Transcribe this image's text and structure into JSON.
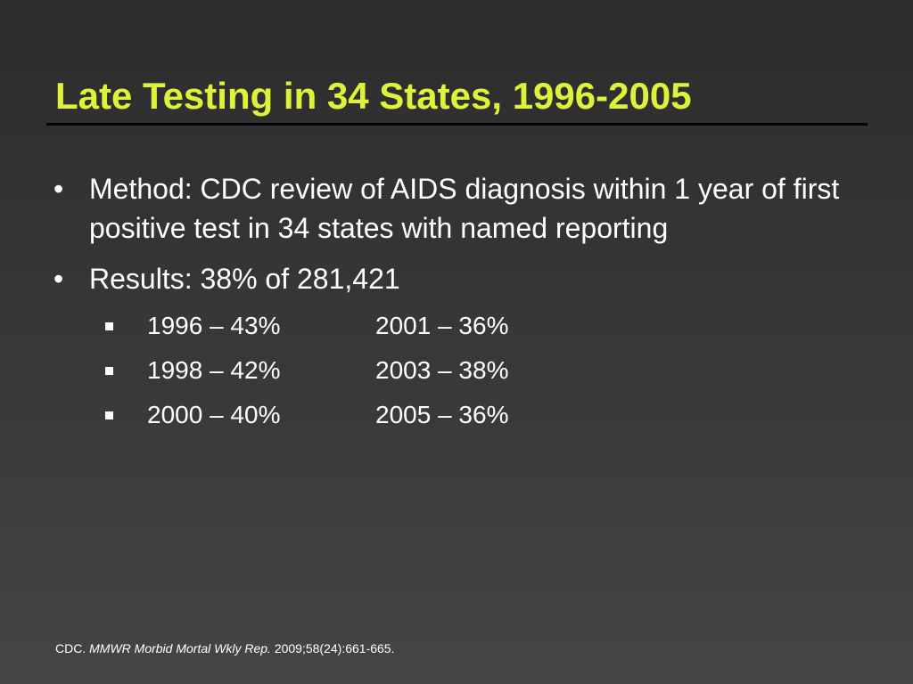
{
  "slide": {
    "title": "Late Testing in 34 States, 1996-2005",
    "title_color": "#dff23a",
    "bullets": [
      {
        "marker": "•",
        "text": "Method:  CDC review of AIDS diagnosis within 1 year of first positive test in 34 states with named reporting"
      },
      {
        "marker": "•",
        "text": "Results:  38% of 281,421"
      }
    ],
    "sub_bullets": [
      {
        "col1": "1996 – 43%",
        "col2": "2001 – 36%"
      },
      {
        "col1": "1998 – 42%",
        "col2": "2003 – 38%"
      },
      {
        "col1": "2000 – 40%",
        "col2": "2005 – 36%"
      }
    ],
    "citation": {
      "author": "CDC.",
      "journal": "MMWR Morbid Mortal Wkly Rep.",
      "details": "2009;58(24):661-665."
    }
  }
}
